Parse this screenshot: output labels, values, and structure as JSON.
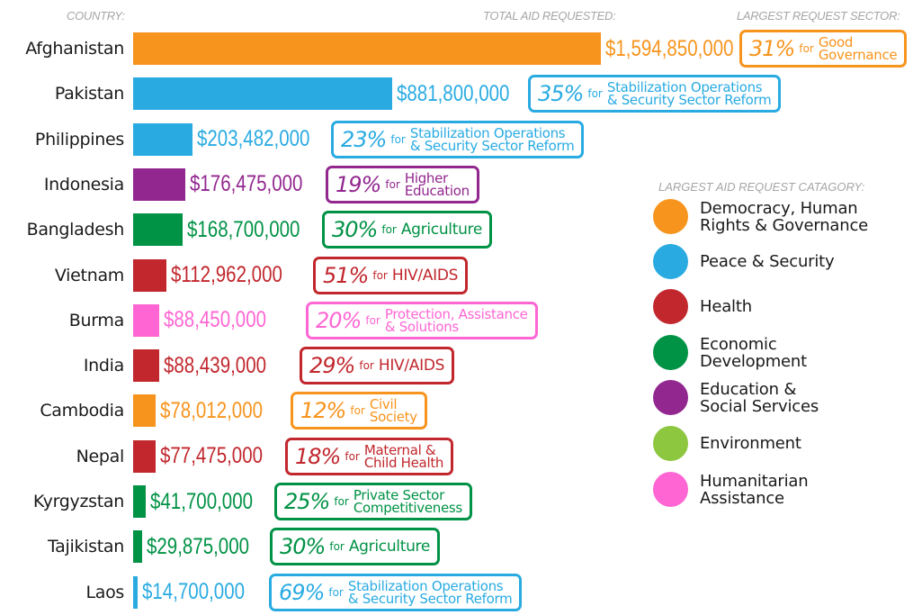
{
  "chart_data": {
    "type": "bar",
    "orientation": "horizontal",
    "headers": {
      "country": "COUNTRY:",
      "total": "TOTAL AID REQUESTED:",
      "sector": "LARGEST REQUEST SECTOR:"
    },
    "categories": [
      "Afghanistan",
      "Pakistan",
      "Philippines",
      "Indonesia",
      "Bangladesh",
      "Vietnam",
      "Burma",
      "India",
      "Cambodia",
      "Nepal",
      "Kyrgyzstan",
      "Tajikistan",
      "Laos"
    ],
    "values": [
      1594850000,
      881800000,
      203482000,
      176475000,
      168700000,
      112962000,
      88450000,
      88439000,
      78012000,
      77475000,
      41700000,
      29875000,
      14700000
    ],
    "value_labels": [
      "$1,594,850,000",
      "$881,800,000",
      "$203,482,000",
      "$176,475,000",
      "$168,700,000",
      "$112,962,000",
      "$88,450,000",
      "$88,439,000",
      "$78,012,000",
      "$77,475,000",
      "$41,700,000",
      "$29,875,000",
      "$14,700,000"
    ],
    "row_category": [
      "democracy",
      "peace",
      "peace",
      "education",
      "economic",
      "health",
      "humanitarian",
      "health",
      "democracy",
      "health",
      "economic",
      "economic",
      "peace"
    ],
    "sectors": [
      {
        "pct": "31%",
        "for": "for",
        "lines": [
          "Good",
          "Governance"
        ]
      },
      {
        "pct": "35%",
        "for": "for",
        "lines": [
          "Stabilization Operations",
          "& Security Sector Reform"
        ]
      },
      {
        "pct": "23%",
        "for": "for",
        "lines": [
          "Stabilization Operations",
          "& Security Sector Reform"
        ]
      },
      {
        "pct": "19%",
        "for": "for",
        "lines": [
          "Higher",
          "Education"
        ]
      },
      {
        "pct": "30%",
        "for": "for",
        "lines": [
          "Agriculture"
        ]
      },
      {
        "pct": "51%",
        "for": "for",
        "lines": [
          "HIV/AIDS"
        ]
      },
      {
        "pct": "20%",
        "for": "for",
        "lines": [
          "Protection, Assistance",
          "& Solutions"
        ]
      },
      {
        "pct": "29%",
        "for": "for",
        "lines": [
          "HIV/AIDS"
        ]
      },
      {
        "pct": "12%",
        "for": "for",
        "lines": [
          "Civil",
          "Society"
        ]
      },
      {
        "pct": "18%",
        "for": "for",
        "lines": [
          "Maternal &",
          "Child Health"
        ]
      },
      {
        "pct": "25%",
        "for": "for",
        "lines": [
          "Private Sector",
          "Competitiveness"
        ]
      },
      {
        "pct": "30%",
        "for": "for",
        "lines": [
          "Agriculture"
        ]
      },
      {
        "pct": "69%",
        "for": "for",
        "lines": [
          "Stabilization Operations",
          "& Security Sector Reform"
        ]
      }
    ],
    "legend": {
      "title": "LARGEST AID REQUEST CATAGORY:",
      "items": [
        {
          "key": "democracy",
          "lines": [
            "Democracy, Human",
            "Rights & Governance"
          ],
          "color": "#F7941D"
        },
        {
          "key": "peace",
          "lines": [
            "Peace & Security"
          ],
          "color": "#29ABE2"
        },
        {
          "key": "health",
          "lines": [
            "Health"
          ],
          "color": "#C1272D"
        },
        {
          "key": "economic",
          "lines": [
            "Economic",
            "Development"
          ],
          "color": "#009245"
        },
        {
          "key": "education",
          "lines": [
            "Education &",
            "Social Services"
          ],
          "color": "#92278F"
        },
        {
          "key": "environment",
          "lines": [
            "Environment"
          ],
          "color": "#8DC63F"
        },
        {
          "key": "humanitarian",
          "lines": [
            "Humanitarian",
            "Assistance"
          ],
          "color": "#FF66D4"
        }
      ]
    }
  }
}
